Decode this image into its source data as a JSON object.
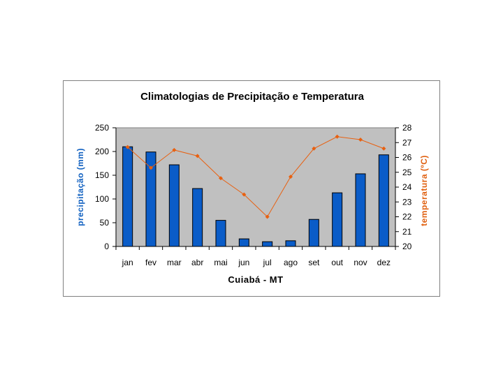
{
  "chart_data": {
    "type": "bar+line",
    "title": "Climatologias de Precipitação e Temperatura",
    "xlabel": "Cuiabá - MT",
    "categories": [
      "jan",
      "fev",
      "mar",
      "abr",
      "mai",
      "jun",
      "jul",
      "ago",
      "set",
      "out",
      "nov",
      "dez"
    ],
    "series": [
      {
        "name": "precipitação",
        "type": "bar",
        "axis": "left",
        "color": "#0a5cc8",
        "values": [
          210,
          199,
          172,
          122,
          55,
          16,
          10,
          12,
          57,
          113,
          153,
          193
        ]
      },
      {
        "name": "temperatura",
        "type": "line",
        "axis": "right",
        "color": "#e86010",
        "values": [
          26.7,
          25.3,
          26.5,
          26.1,
          24.6,
          23.5,
          22.0,
          24.7,
          26.6,
          27.4,
          27.2,
          26.6
        ]
      }
    ],
    "ylabel_left": "precipitação (mm)",
    "ylabel_right": "temperatura (ºC)",
    "ylim_left": [
      0,
      250
    ],
    "yticks_left": [
      "0",
      "50",
      "100",
      "150",
      "200",
      "250"
    ],
    "ylim_right": [
      20,
      28
    ],
    "yticks_right": [
      "20",
      "21",
      "22",
      "23",
      "24",
      "25",
      "26",
      "27",
      "28"
    ],
    "plot_background": "#c0c0c0",
    "grid": false,
    "legend": "none"
  }
}
